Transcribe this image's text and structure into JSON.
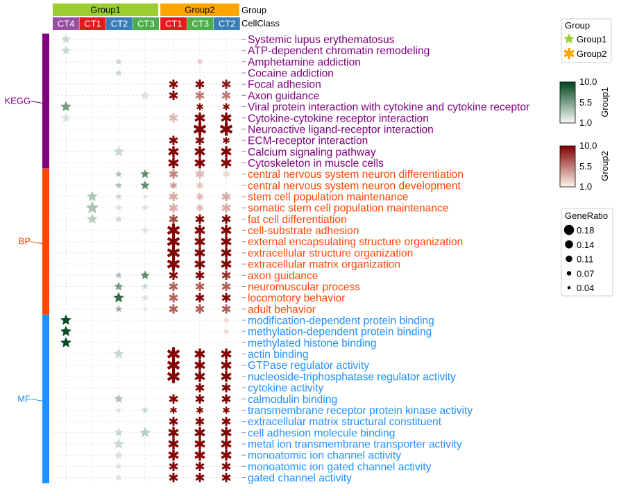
{
  "header": {
    "group_label": "Group",
    "cellclass_label": "CellClass",
    "groups": [
      {
        "name": "Group1",
        "color": "#9ACD32",
        "columns": [
          "CT4",
          "CT1",
          "CT2",
          "CT3"
        ]
      },
      {
        "name": "Group2",
        "color": "#FFA500",
        "columns": [
          "CT1",
          "CT3",
          "CT2"
        ]
      }
    ],
    "cellclass_colors": {
      "CT4": "#984EA3",
      "CT1": "#E41A1C",
      "CT2": "#377EB8",
      "CT3": "#4DAF4A"
    }
  },
  "legend": {
    "group": {
      "title": "Group",
      "items": [
        {
          "label": "Group1",
          "color": "#9ACD32",
          "shape": "star-icon"
        },
        {
          "label": "Group2",
          "color": "#FFA500",
          "shape": "asterisk-icon"
        }
      ]
    },
    "group1_scale": {
      "title": "Group1",
      "ticks": [
        "10.0",
        "5.5",
        "1.0"
      ],
      "low": "#F7FCF5",
      "high": "#00441B"
    },
    "group2_scale": {
      "title": "Group2",
      "ticks": [
        "10.0",
        "5.5",
        "1.0"
      ],
      "low": "#FFF5EB",
      "high": "#7F0000"
    },
    "gene_ratio": {
      "title": "GeneRatio",
      "items": [
        "0.18",
        "0.14",
        "0.11",
        "0.07",
        "0.04"
      ]
    }
  },
  "chart_data": {
    "type": "dot-matrix",
    "columns": [
      {
        "group": "Group1",
        "cell": "CT4"
      },
      {
        "group": "Group1",
        "cell": "CT1"
      },
      {
        "group": "Group1",
        "cell": "CT2"
      },
      {
        "group": "Group1",
        "cell": "CT3"
      },
      {
        "group": "Group2",
        "cell": "CT1"
      },
      {
        "group": "Group2",
        "cell": "CT3"
      },
      {
        "group": "Group2",
        "cell": "CT2"
      }
    ],
    "categories": [
      {
        "name": "KEGG",
        "color": "#800080",
        "text_color": "#800080"
      },
      {
        "name": "BP",
        "color": "#FF4500",
        "text_color": "#FF4500"
      },
      {
        "name": "MF",
        "color": "#1E90FF",
        "text_color": "#1E90FF"
      }
    ],
    "terms": [
      {
        "term": "Systemic lupus erythematosus",
        "cat": "KEGG",
        "cells": [
          [
            0.11,
            2
          ],
          null,
          null,
          null,
          null,
          null,
          null
        ]
      },
      {
        "term": "ATP-dependent chromatin remodeling",
        "cat": "KEGG",
        "cells": [
          [
            0.11,
            2
          ],
          null,
          null,
          null,
          null,
          null,
          null
        ]
      },
      {
        "term": "Amphetamine addiction",
        "cat": "KEGG",
        "cells": [
          null,
          null,
          [
            0.07,
            2
          ],
          null,
          null,
          [
            0.04,
            2
          ],
          null
        ]
      },
      {
        "term": "Cocaine addiction",
        "cat": "KEGG",
        "cells": [
          null,
          null,
          [
            0.07,
            2
          ],
          null,
          null,
          null,
          null
        ]
      },
      {
        "term": "Focal adhesion",
        "cat": "KEGG",
        "cells": [
          null,
          null,
          null,
          null,
          [
            0.11,
            10
          ],
          [
            0.11,
            10
          ],
          [
            0.11,
            9
          ]
        ]
      },
      {
        "term": "Axon guidance",
        "cat": "KEGG",
        "cells": [
          null,
          null,
          null,
          [
            0.11,
            1.5
          ],
          [
            0.11,
            10
          ],
          [
            0.11,
            5
          ],
          [
            0.11,
            5
          ]
        ]
      },
      {
        "term": "Viral protein interaction with cytokine and cytokine receptor",
        "cat": "KEGG",
        "cells": [
          [
            0.14,
            5
          ],
          null,
          null,
          null,
          null,
          [
            0.07,
            10
          ],
          [
            0.07,
            10
          ]
        ]
      },
      {
        "term": "Cytokine-cytokine receptor interaction",
        "cat": "KEGG",
        "cells": [
          [
            0.11,
            1.5
          ],
          null,
          null,
          null,
          [
            0.11,
            2.5
          ],
          [
            0.14,
            10
          ],
          [
            0.14,
            10
          ]
        ]
      },
      {
        "term": "Neuroactive ligand-receptor interaction",
        "cat": "KEGG",
        "cells": [
          null,
          null,
          null,
          null,
          null,
          [
            0.18,
            10
          ],
          [
            0.18,
            10
          ]
        ]
      },
      {
        "term": "ECM-receptor interaction",
        "cat": "KEGG",
        "cells": [
          null,
          null,
          null,
          null,
          [
            0.11,
            10
          ],
          [
            0.11,
            10
          ],
          [
            0.07,
            10
          ]
        ]
      },
      {
        "term": "Calcium signaling pathway",
        "cat": "KEGG",
        "cells": [
          null,
          null,
          [
            0.14,
            2
          ],
          null,
          [
            0.14,
            10
          ],
          [
            0.14,
            10
          ],
          [
            0.14,
            10
          ]
        ]
      },
      {
        "term": "Cytoskeleton in muscle cells",
        "cat": "KEGG",
        "cells": [
          null,
          null,
          null,
          null,
          [
            0.14,
            10
          ],
          [
            0.14,
            10
          ],
          [
            0.14,
            10
          ]
        ]
      },
      {
        "term": "central nervous system neuron differentiation",
        "cat": "BP",
        "cells": [
          null,
          null,
          [
            0.07,
            3
          ],
          [
            0.11,
            6
          ],
          [
            0.11,
            4.5
          ],
          [
            0.11,
            2.5
          ],
          [
            0.07,
            1.5
          ]
        ]
      },
      {
        "term": "central nervous system neuron development",
        "cat": "BP",
        "cells": [
          null,
          null,
          [
            0.07,
            3
          ],
          [
            0.11,
            6
          ],
          [
            0.07,
            3.5
          ],
          [
            0.07,
            2
          ],
          null
        ]
      },
      {
        "term": "stem cell population maintenance",
        "cat": "BP",
        "cells": [
          null,
          [
            0.14,
            3
          ],
          [
            0.07,
            2
          ],
          [
            0.04,
            1.5
          ],
          [
            0.11,
            3
          ],
          [
            0.07,
            2.5
          ],
          [
            0.11,
            3
          ]
        ]
      },
      {
        "term": "somatic stem cell population maintenance",
        "cat": "BP",
        "cells": [
          null,
          [
            0.18,
            3
          ],
          [
            0.07,
            1.5
          ],
          [
            0.07,
            1.5
          ],
          [
            0.11,
            3
          ],
          [
            0.07,
            2.5
          ],
          [
            0.11,
            3
          ]
        ]
      },
      {
        "term": "fat cell differentiation",
        "cat": "BP",
        "cells": [
          null,
          [
            0.14,
            2.5
          ],
          [
            0.07,
            2
          ],
          null,
          [
            0.11,
            7
          ],
          [
            0.11,
            10
          ],
          [
            0.11,
            10
          ]
        ]
      },
      {
        "term": "cell-substrate adhesion",
        "cat": "BP",
        "cells": [
          null,
          null,
          null,
          [
            0.07,
            1.5
          ],
          [
            0.18,
            10
          ],
          [
            0.14,
            10
          ],
          [
            0.14,
            10
          ]
        ]
      },
      {
        "term": "external encapsulating structure organization",
        "cat": "BP",
        "cells": [
          null,
          null,
          null,
          null,
          [
            0.18,
            10
          ],
          [
            0.14,
            10
          ],
          [
            0.14,
            10
          ]
        ]
      },
      {
        "term": "extracellular structure organization",
        "cat": "BP",
        "cells": [
          null,
          null,
          null,
          null,
          [
            0.18,
            10
          ],
          [
            0.14,
            10
          ],
          [
            0.14,
            10
          ]
        ]
      },
      {
        "term": "extracellular matrix organization",
        "cat": "BP",
        "cells": [
          null,
          null,
          null,
          null,
          [
            0.18,
            10
          ],
          [
            0.14,
            10
          ],
          [
            0.14,
            10
          ]
        ]
      },
      {
        "term": "axon guidance",
        "cat": "BP",
        "cells": [
          null,
          null,
          [
            0.07,
            3
          ],
          [
            0.11,
            6
          ],
          [
            0.11,
            10
          ],
          [
            0.11,
            10
          ],
          [
            0.11,
            8
          ]
        ]
      },
      {
        "term": "neuromuscular process",
        "cat": "BP",
        "cells": [
          null,
          null,
          [
            0.11,
            5
          ],
          [
            0.07,
            2
          ],
          [
            0.11,
            6
          ],
          [
            0.11,
            6
          ],
          [
            0.11,
            6
          ]
        ]
      },
      {
        "term": "locomotory behavior",
        "cat": "BP",
        "cells": [
          null,
          null,
          [
            0.14,
            8
          ],
          [
            0.07,
            1.5
          ],
          [
            0.11,
            6
          ],
          [
            0.11,
            10
          ],
          [
            0.11,
            10
          ]
        ]
      },
      {
        "term": "adult behavior",
        "cat": "BP",
        "cells": [
          null,
          null,
          [
            0.07,
            4
          ],
          [
            0.04,
            1.5
          ],
          [
            0.11,
            6
          ],
          [
            0.11,
            6
          ],
          [
            0.11,
            6
          ]
        ]
      },
      {
        "term": "modification-dependent protein binding",
        "cat": "MF",
        "cells": [
          [
            0.14,
            10
          ],
          null,
          null,
          null,
          null,
          null,
          [
            0.04,
            1.5
          ]
        ]
      },
      {
        "term": "methylation-dependent protein binding",
        "cat": "MF",
        "cells": [
          [
            0.14,
            10
          ],
          null,
          null,
          null,
          null,
          null,
          [
            0.04,
            1.5
          ]
        ]
      },
      {
        "term": "methylated histone binding",
        "cat": "MF",
        "cells": [
          [
            0.14,
            10
          ],
          null,
          null,
          null,
          null,
          null,
          null
        ]
      },
      {
        "term": "actin binding",
        "cat": "MF",
        "cells": [
          null,
          null,
          [
            0.14,
            2
          ],
          null,
          [
            0.18,
            10
          ],
          [
            0.14,
            10
          ],
          [
            0.14,
            10
          ]
        ]
      },
      {
        "term": "GTPase regulator activity",
        "cat": "MF",
        "cells": [
          null,
          null,
          null,
          null,
          [
            0.18,
            10
          ],
          [
            0.14,
            10
          ],
          [
            0.14,
            10
          ]
        ]
      },
      {
        "term": "nucleoside-triphosphatase regulator activity",
        "cat": "MF",
        "cells": [
          null,
          null,
          null,
          null,
          [
            0.18,
            10
          ],
          [
            0.14,
            10
          ],
          [
            0.14,
            10
          ]
        ]
      },
      {
        "term": "cytokine activity",
        "cat": "MF",
        "cells": [
          null,
          null,
          null,
          null,
          null,
          [
            0.11,
            10
          ],
          [
            0.11,
            10
          ]
        ]
      },
      {
        "term": "calmodulin binding",
        "cat": "MF",
        "cells": [
          null,
          null,
          [
            0.11,
            3
          ],
          null,
          [
            0.11,
            10
          ],
          [
            0.11,
            10
          ],
          [
            0.11,
            10
          ]
        ]
      },
      {
        "term": "transmembrane receptor protein kinase activity",
        "cat": "MF",
        "cells": [
          null,
          null,
          [
            0.04,
            1.5
          ],
          [
            0.07,
            2
          ],
          [
            0.07,
            10
          ],
          [
            0.07,
            10
          ],
          [
            0.07,
            10
          ]
        ]
      },
      {
        "term": "extracellular matrix structural constituent",
        "cat": "MF",
        "cells": [
          null,
          null,
          null,
          null,
          [
            0.11,
            10
          ],
          [
            0.11,
            10
          ],
          [
            0.11,
            10
          ]
        ]
      },
      {
        "term": "cell adhesion molecule binding",
        "cat": "MF",
        "cells": [
          null,
          null,
          [
            0.11,
            2
          ],
          [
            0.14,
            2.5
          ],
          [
            0.14,
            10
          ],
          [
            0.14,
            10
          ],
          [
            0.14,
            10
          ]
        ]
      },
      {
        "term": "metal ion transmembrane transporter activity",
        "cat": "MF",
        "cells": [
          null,
          null,
          [
            0.14,
            2
          ],
          null,
          [
            0.14,
            10
          ],
          [
            0.14,
            10
          ],
          [
            0.14,
            10
          ]
        ]
      },
      {
        "term": "monoatomic ion channel activity",
        "cat": "MF",
        "cells": [
          null,
          null,
          [
            0.11,
            1.5
          ],
          null,
          [
            0.14,
            10
          ],
          [
            0.14,
            10
          ],
          [
            0.14,
            10
          ]
        ]
      },
      {
        "term": "monoatomic ion gated channel activity",
        "cat": "MF",
        "cells": [
          null,
          null,
          [
            0.07,
            1.5
          ],
          null,
          [
            0.11,
            10
          ],
          [
            0.11,
            10
          ],
          [
            0.11,
            10
          ]
        ]
      },
      {
        "term": "gated channel activity",
        "cat": "MF",
        "cells": [
          null,
          null,
          [
            0.07,
            1.5
          ],
          null,
          [
            0.11,
            10
          ],
          [
            0.11,
            10
          ],
          [
            0.11,
            10
          ]
        ]
      }
    ],
    "value_range": [
      1.0,
      10.0
    ],
    "gene_ratio_range": [
      0.04,
      0.18
    ]
  }
}
